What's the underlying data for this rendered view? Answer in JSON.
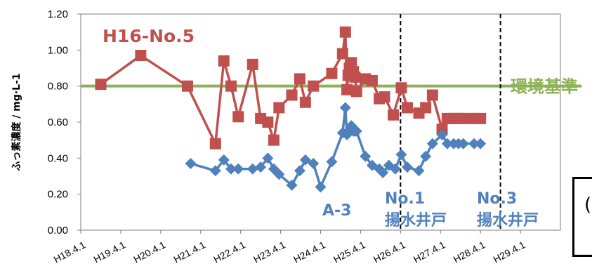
{
  "chart_data": {
    "type": "line",
    "ylabel": "ふっ素濃度 / mg·L-1",
    "ylim": [
      0,
      1.2
    ],
    "yticks": [
      "0.00",
      "0.20",
      "0.40",
      "0.60",
      "0.80",
      "1.00",
      "1.20"
    ],
    "xticks": [
      "H18.4.1",
      "H19.4.1",
      "H20.4.1",
      "H21.4.1",
      "H22.4.1",
      "H23.4.1",
      "H24.4.1",
      "H25.4.1",
      "H26.4.1",
      "H27.4.1",
      "H28.4.1",
      "H29.4.1"
    ],
    "grid": false,
    "series": [
      {
        "name": "H16-No.5",
        "color": "#c0504d",
        "marker": "square",
        "x": [
          0.5,
          1.5,
          2.67,
          3.37,
          3.58,
          3.76,
          3.94,
          4.3,
          4.5,
          4.68,
          4.83,
          4.96,
          5.28,
          5.48,
          5.62,
          5.82,
          6.28,
          6.55,
          6.62,
          6.66,
          6.69,
          6.72,
          6.77,
          6.82,
          6.86,
          6.9,
          7.12,
          7.29,
          7.47,
          7.6,
          7.82,
          8.02,
          8.17,
          8.46,
          8.63,
          8.8,
          9.04,
          9.17,
          9.33,
          9.45,
          9.57,
          9.84,
          10.0
        ],
        "y": [
          0.81,
          0.97,
          0.8,
          0.48,
          0.94,
          0.8,
          0.63,
          0.92,
          0.62,
          0.6,
          0.5,
          0.68,
          0.75,
          0.84,
          0.71,
          0.8,
          0.87,
          0.98,
          1.1,
          0.78,
          0.86,
          0.9,
          0.93,
          0.88,
          0.85,
          0.77,
          0.84,
          0.83,
          0.73,
          0.74,
          0.64,
          0.79,
          0.68,
          0.65,
          0.68,
          0.75,
          0.56,
          0.62,
          0.62,
          0.62,
          0.62,
          0.62,
          0.62
        ]
      },
      {
        "name": "A-3",
        "color": "#4f81bd",
        "marker": "diamond",
        "x": [
          2.75,
          3.37,
          3.58,
          3.76,
          3.94,
          4.3,
          4.5,
          4.68,
          4.83,
          4.96,
          5.28,
          5.48,
          5.62,
          5.82,
          6.0,
          6.28,
          6.55,
          6.62,
          6.66,
          6.69,
          6.72,
          6.77,
          6.82,
          6.86,
          6.9,
          7.12,
          7.29,
          7.47,
          7.56,
          7.71,
          7.87,
          8.02,
          8.17,
          8.46,
          8.63,
          8.8,
          9.04,
          9.17,
          9.33,
          9.45,
          9.57,
          9.84,
          10.0
        ],
        "y": [
          0.37,
          0.33,
          0.39,
          0.34,
          0.34,
          0.34,
          0.35,
          0.4,
          0.34,
          0.31,
          0.25,
          0.33,
          0.39,
          0.37,
          0.24,
          0.38,
          0.54,
          0.68,
          0.53,
          0.55,
          0.55,
          0.58,
          0.55,
          0.55,
          0.55,
          0.41,
          0.36,
          0.34,
          0.32,
          0.36,
          0.34,
          0.42,
          0.35,
          0.33,
          0.41,
          0.48,
          0.53,
          0.48,
          0.48,
          0.48,
          0.48,
          0.48,
          0.48
        ]
      }
    ],
    "reference_line": {
      "label": "環境基準",
      "value": 0.8,
      "color": "#8db255"
    },
    "vlines": [
      {
        "label_top": "No.1",
        "label_bottom": "揚水井戸",
        "x": 8.0
      },
      {
        "label_top": "No.3",
        "label_bottom": "揚水井戸",
        "x": 10.5
      }
    ],
    "annotations": [
      "H16-No.5",
      "A-3"
    ]
  },
  "side_box_text": "("
}
